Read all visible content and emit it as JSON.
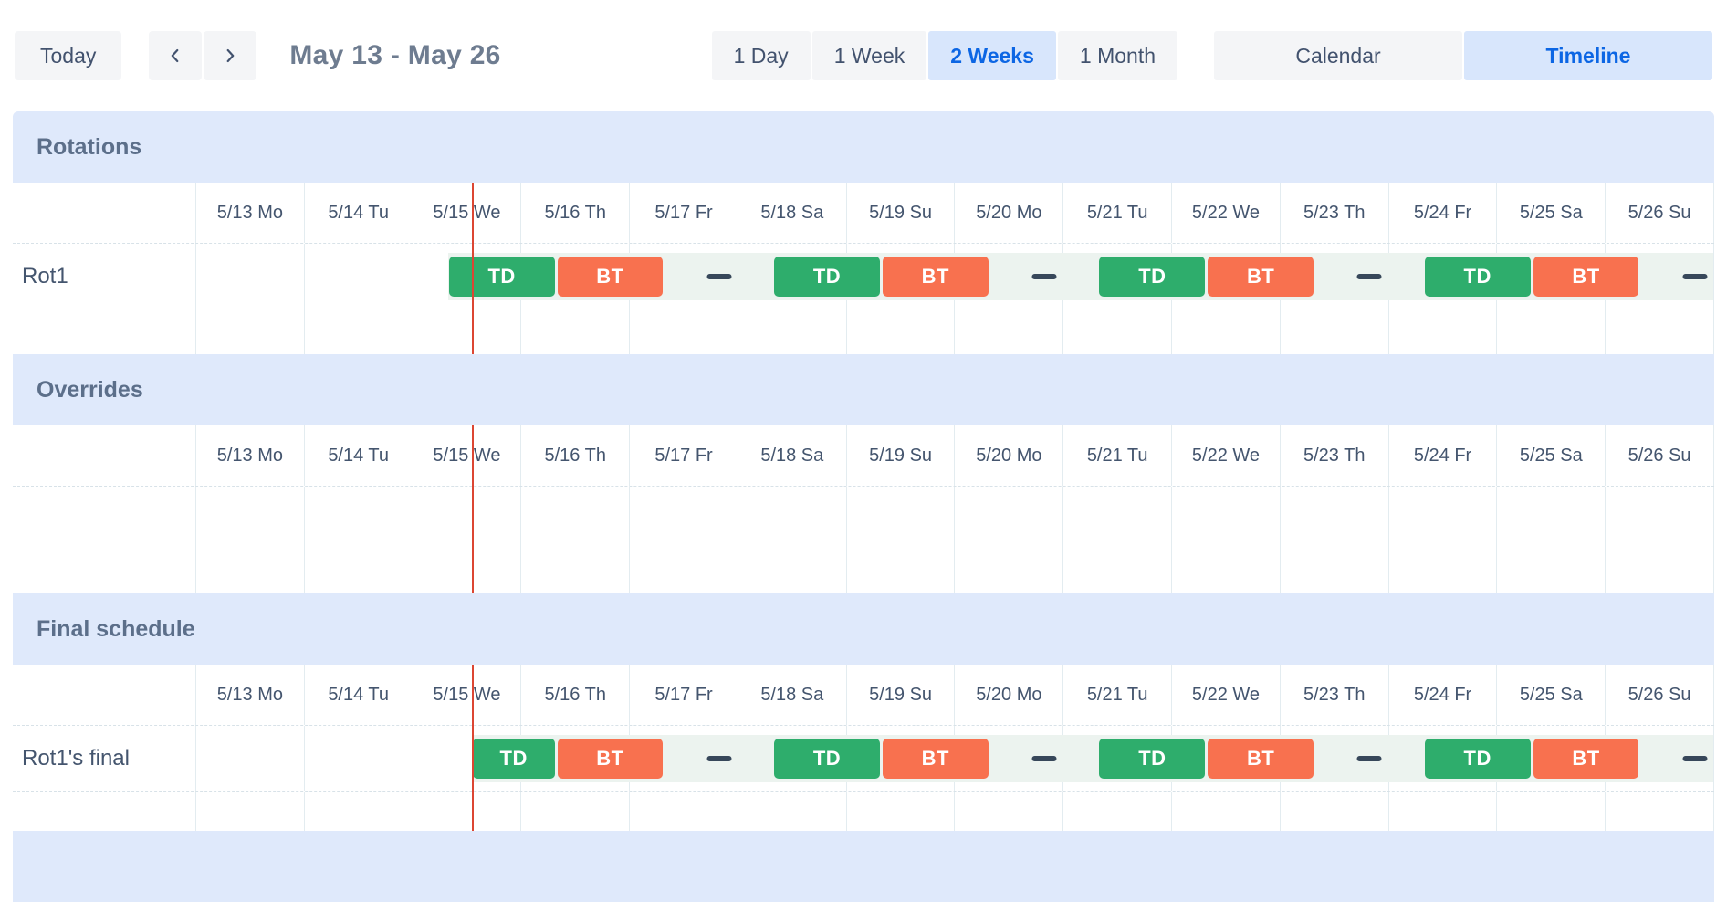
{
  "toolbar": {
    "today": "Today",
    "prev_icon": "chevron-left",
    "next_icon": "chevron-right",
    "date_range": "May 13 - May 26",
    "zoom_options": [
      {
        "label": "1 Day",
        "active": false
      },
      {
        "label": "1 Week",
        "active": false
      },
      {
        "label": "2 Weeks",
        "active": true
      },
      {
        "label": "1 Month",
        "active": false
      }
    ],
    "view_options": [
      {
        "label": "Calendar",
        "active": false
      },
      {
        "label": "Timeline",
        "active": true
      }
    ]
  },
  "colors": {
    "shift_td": "#2ead6c",
    "shift_bt": "#f8714f",
    "gap_dash": "#37475a",
    "now_line": "#dc4633",
    "accent_blue": "#0c66e4",
    "selected_bg": "#d8e6fc",
    "section_header_bg": "#dfe9fb",
    "coverage_band": "#ecf3ef"
  },
  "timeline": {
    "days": [
      "5/13 Mo",
      "5/14 Tu",
      "5/15 We",
      "5/16 Th",
      "5/17 Fr",
      "5/18 Sa",
      "5/19 Su",
      "5/20 Mo",
      "5/21 Tu",
      "5/22 We",
      "5/23 Th",
      "5/24 Fr",
      "5/25 Sa",
      "5/26 Su"
    ],
    "total_days": 14,
    "now_position_days": 2.55
  },
  "sections": {
    "rotations": {
      "title": "Rotations"
    },
    "overrides": {
      "title": "Overrides"
    },
    "final": {
      "title": "Final schedule"
    }
  },
  "rows": {
    "rotation": {
      "label": "Rot1",
      "coverage_start_days": 2.33,
      "shifts": [
        {
          "kind": "shift",
          "label": "TD",
          "color_key": "shift_td",
          "start_days": 2.33,
          "end_days": 3.33
        },
        {
          "kind": "shift",
          "label": "BT",
          "color_key": "shift_bt",
          "start_days": 3.33,
          "end_days": 4.33
        },
        {
          "kind": "gap",
          "center_days": 4.83
        },
        {
          "kind": "shift",
          "label": "TD",
          "color_key": "shift_td",
          "start_days": 5.33,
          "end_days": 6.33
        },
        {
          "kind": "shift",
          "label": "BT",
          "color_key": "shift_bt",
          "start_days": 6.33,
          "end_days": 7.33
        },
        {
          "kind": "gap",
          "center_days": 7.83
        },
        {
          "kind": "shift",
          "label": "TD",
          "color_key": "shift_td",
          "start_days": 8.33,
          "end_days": 9.33
        },
        {
          "kind": "shift",
          "label": "BT",
          "color_key": "shift_bt",
          "start_days": 9.33,
          "end_days": 10.33
        },
        {
          "kind": "gap",
          "center_days": 10.83
        },
        {
          "kind": "shift",
          "label": "TD",
          "color_key": "shift_td",
          "start_days": 11.33,
          "end_days": 12.33
        },
        {
          "kind": "shift",
          "label": "BT",
          "color_key": "shift_bt",
          "start_days": 12.33,
          "end_days": 13.33
        },
        {
          "kind": "gap",
          "center_days": 13.83
        }
      ]
    },
    "final": {
      "label": "Rot1's final",
      "coverage_start_days": 2.55,
      "shifts": [
        {
          "kind": "shift",
          "label": "TD",
          "color_key": "shift_td",
          "start_days": 2.55,
          "end_days": 3.33
        },
        {
          "kind": "shift",
          "label": "BT",
          "color_key": "shift_bt",
          "start_days": 3.33,
          "end_days": 4.33
        },
        {
          "kind": "gap",
          "center_days": 4.83
        },
        {
          "kind": "shift",
          "label": "TD",
          "color_key": "shift_td",
          "start_days": 5.33,
          "end_days": 6.33
        },
        {
          "kind": "shift",
          "label": "BT",
          "color_key": "shift_bt",
          "start_days": 6.33,
          "end_days": 7.33
        },
        {
          "kind": "gap",
          "center_days": 7.83
        },
        {
          "kind": "shift",
          "label": "TD",
          "color_key": "shift_td",
          "start_days": 8.33,
          "end_days": 9.33
        },
        {
          "kind": "shift",
          "label": "BT",
          "color_key": "shift_bt",
          "start_days": 9.33,
          "end_days": 10.33
        },
        {
          "kind": "gap",
          "center_days": 10.83
        },
        {
          "kind": "shift",
          "label": "TD",
          "color_key": "shift_td",
          "start_days": 11.33,
          "end_days": 12.33
        },
        {
          "kind": "shift",
          "label": "BT",
          "color_key": "shift_bt",
          "start_days": 12.33,
          "end_days": 13.33
        },
        {
          "kind": "gap",
          "center_days": 13.83
        }
      ]
    }
  }
}
